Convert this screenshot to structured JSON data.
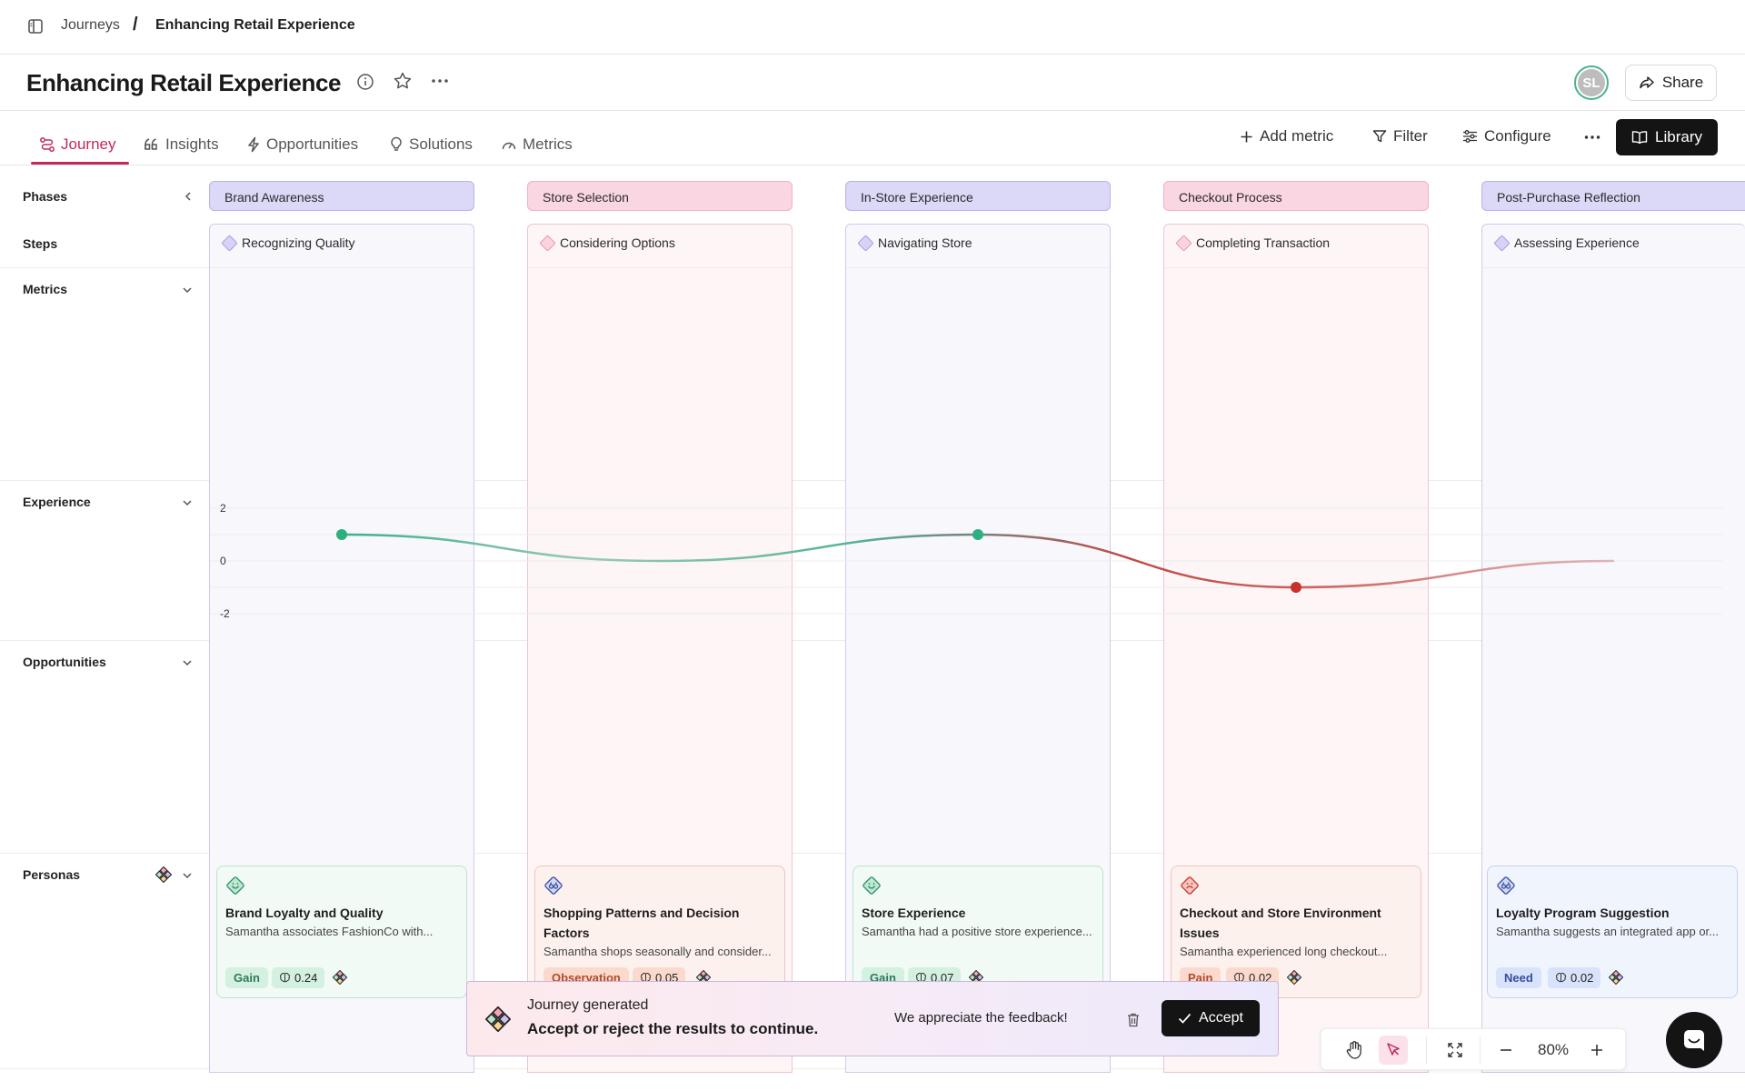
{
  "breadcrumb": {
    "root": "Journeys",
    "separator": "/",
    "current": "Enhancing Retail Experience"
  },
  "header": {
    "title": "Enhancing Retail Experience",
    "avatar_initials": "SL",
    "share_label": "Share"
  },
  "tabs": [
    {
      "label": "Journey",
      "icon": "journey-icon",
      "active": true
    },
    {
      "label": "Insights",
      "icon": "quote-icon"
    },
    {
      "label": "Opportunities",
      "icon": "bolt-icon"
    },
    {
      "label": "Solutions",
      "icon": "lightbulb-icon"
    },
    {
      "label": "Metrics",
      "icon": "gauge-icon"
    }
  ],
  "toolbar": {
    "add_metric": "Add metric",
    "filter": "Filter",
    "configure": "Configure",
    "library": "Library"
  },
  "rows": {
    "phases": "Phases",
    "steps": "Steps",
    "metrics": "Metrics",
    "experience": "Experience",
    "opportunities": "Opportunities",
    "personas": "Personas"
  },
  "phases": [
    {
      "name": "Brand Awareness",
      "step": "Recognizing Quality",
      "color": "#8b7fd6"
    },
    {
      "name": "Store Selection",
      "step": "Considering Options",
      "color": "#e07aa0"
    },
    {
      "name": "In-Store Experience",
      "step": "Navigating Store",
      "color": "#8b7fd6"
    },
    {
      "name": "Checkout Process",
      "step": "Completing Transaction",
      "color": "#e07aa0"
    },
    {
      "name": "Post-Purchase Reflection",
      "step": "Assessing Experience",
      "color": "#8b7fd6"
    }
  ],
  "experience": {
    "y_ticks": [
      "2",
      "0",
      "-2"
    ],
    "values": [
      1,
      0,
      1,
      -1,
      0
    ]
  },
  "personas_cards": [
    {
      "title": "Brand Loyalty and Quality",
      "desc": "Samantha associates FashionCo with...",
      "tag": "Gain",
      "score": "0.24",
      "mood": "happy"
    },
    {
      "title": "Shopping Patterns and Decision Factors",
      "desc": "Samantha shops seasonally and consider...",
      "tag": "Observation",
      "score": "0.05",
      "mood": "observe"
    },
    {
      "title": "Store Experience",
      "desc": "Samantha had a positive store experience...",
      "tag": "Gain",
      "score": "0.07",
      "mood": "happy"
    },
    {
      "title": "Checkout and Store Environment Issues",
      "desc": "Samantha experienced long checkout...",
      "tag": "Pain",
      "score": "0.02",
      "mood": "sad"
    },
    {
      "title": "Loyalty Program Suggestion",
      "desc": "Samantha suggests an integrated app or...",
      "tag": "Need",
      "score": "0.02",
      "mood": "observe"
    }
  ],
  "toast": {
    "title": "Journey generated",
    "message": "Accept or reject the results to continue.",
    "feedback": "We appreciate the feedback!",
    "accept": "Accept"
  },
  "zoom": {
    "level": "80%"
  }
}
